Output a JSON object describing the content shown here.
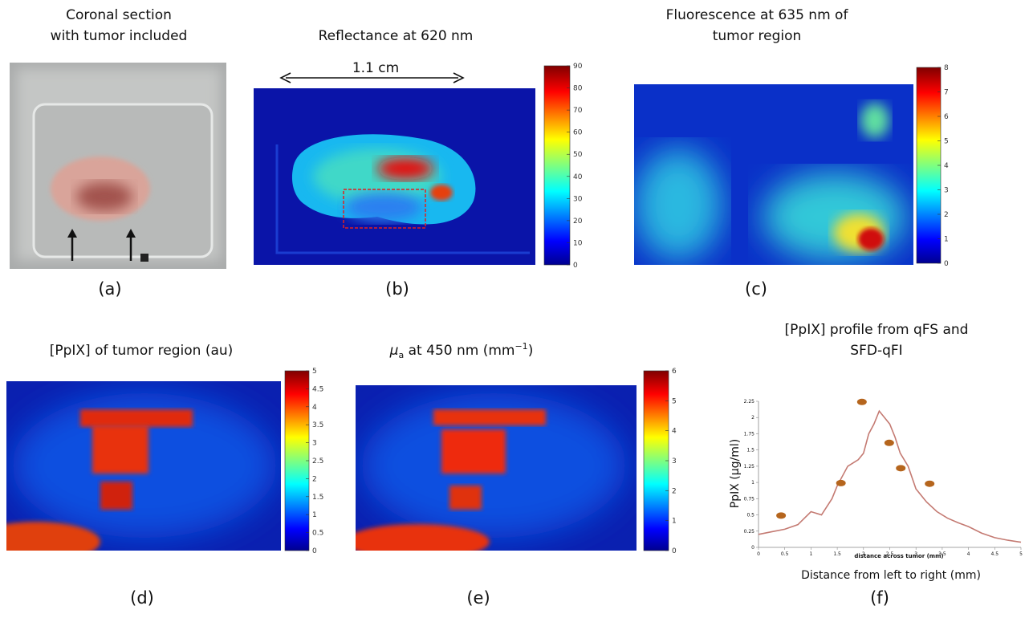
{
  "panels": [
    {
      "title_lines": [
        "Coronal section",
        "with tumor included"
      ],
      "label": "(a)"
    },
    {
      "title_lines": [
        "Reflectance at 620 nm"
      ],
      "label": "(b)",
      "scale_text": "1.1 cm",
      "colorbar_ticks": [
        0,
        10,
        20,
        30,
        40,
        50,
        60,
        70,
        80,
        90
      ]
    },
    {
      "title_lines": [
        "Fluorescence at 635 nm of",
        "tumor region"
      ],
      "label": "(c)",
      "colorbar_ticks": [
        0,
        1,
        2,
        3,
        4,
        5,
        6,
        7,
        8
      ]
    },
    {
      "title_lines": [
        "[PpIX] of tumor region (au)"
      ],
      "label": "(d)",
      "colorbar_ticks": [
        0,
        0.5,
        1,
        1.5,
        2,
        2.5,
        3,
        3.5,
        4,
        4.5,
        5
      ]
    },
    {
      "title_parts": [
        "μ",
        "a",
        " at 450 nm (mm",
        "−1",
        ")"
      ],
      "label": "(e)",
      "colorbar_ticks": [
        0,
        1,
        2,
        3,
        4,
        5,
        6
      ]
    },
    {
      "title_lines": [
        "[PpIX] profile from qFS and",
        "SFD-qFI"
      ],
      "label": "(f)"
    }
  ],
  "chart_data": {
    "type": "line",
    "x_label": "Distance from left to right (mm)",
    "inner_x_label": "distance across tumor (mm)",
    "y_label": "PpIX (μg/ml)",
    "xlim": [
      0,
      5
    ],
    "xticks": [
      0,
      0.5,
      1,
      1.5,
      2,
      2.5,
      3,
      3.5,
      4,
      4.5,
      5
    ],
    "ylim": [
      0,
      2.25
    ],
    "yticks": [
      0,
      0.25,
      0.5,
      0.75,
      1,
      1.25,
      1.5,
      1.75,
      2,
      2.25
    ],
    "series": [
      {
        "type": "line",
        "color": "#c47a72",
        "x": [
          0,
          0.25,
          0.5,
          0.75,
          1.0,
          1.2,
          1.4,
          1.5,
          1.7,
          1.9,
          2.0,
          2.1,
          2.2,
          2.3,
          2.4,
          2.5,
          2.6,
          2.7,
          2.85,
          3.0,
          3.2,
          3.4,
          3.6,
          3.8,
          4.0,
          4.25,
          4.5,
          4.75,
          5.0
        ],
        "values": [
          0.2,
          0.24,
          0.28,
          0.35,
          0.55,
          0.5,
          0.75,
          0.95,
          1.25,
          1.35,
          1.45,
          1.75,
          1.9,
          2.1,
          2.0,
          1.9,
          1.7,
          1.45,
          1.25,
          0.9,
          0.7,
          0.55,
          0.45,
          0.38,
          0.32,
          0.22,
          0.15,
          0.11,
          0.08
        ]
      },
      {
        "type": "scatter",
        "color": "#b5651d",
        "x": [
          0.43,
          1.57,
          1.97,
          2.49,
          2.71,
          3.26
        ],
        "values": [
          0.49,
          0.99,
          2.24,
          1.61,
          1.22,
          0.98
        ]
      }
    ]
  }
}
